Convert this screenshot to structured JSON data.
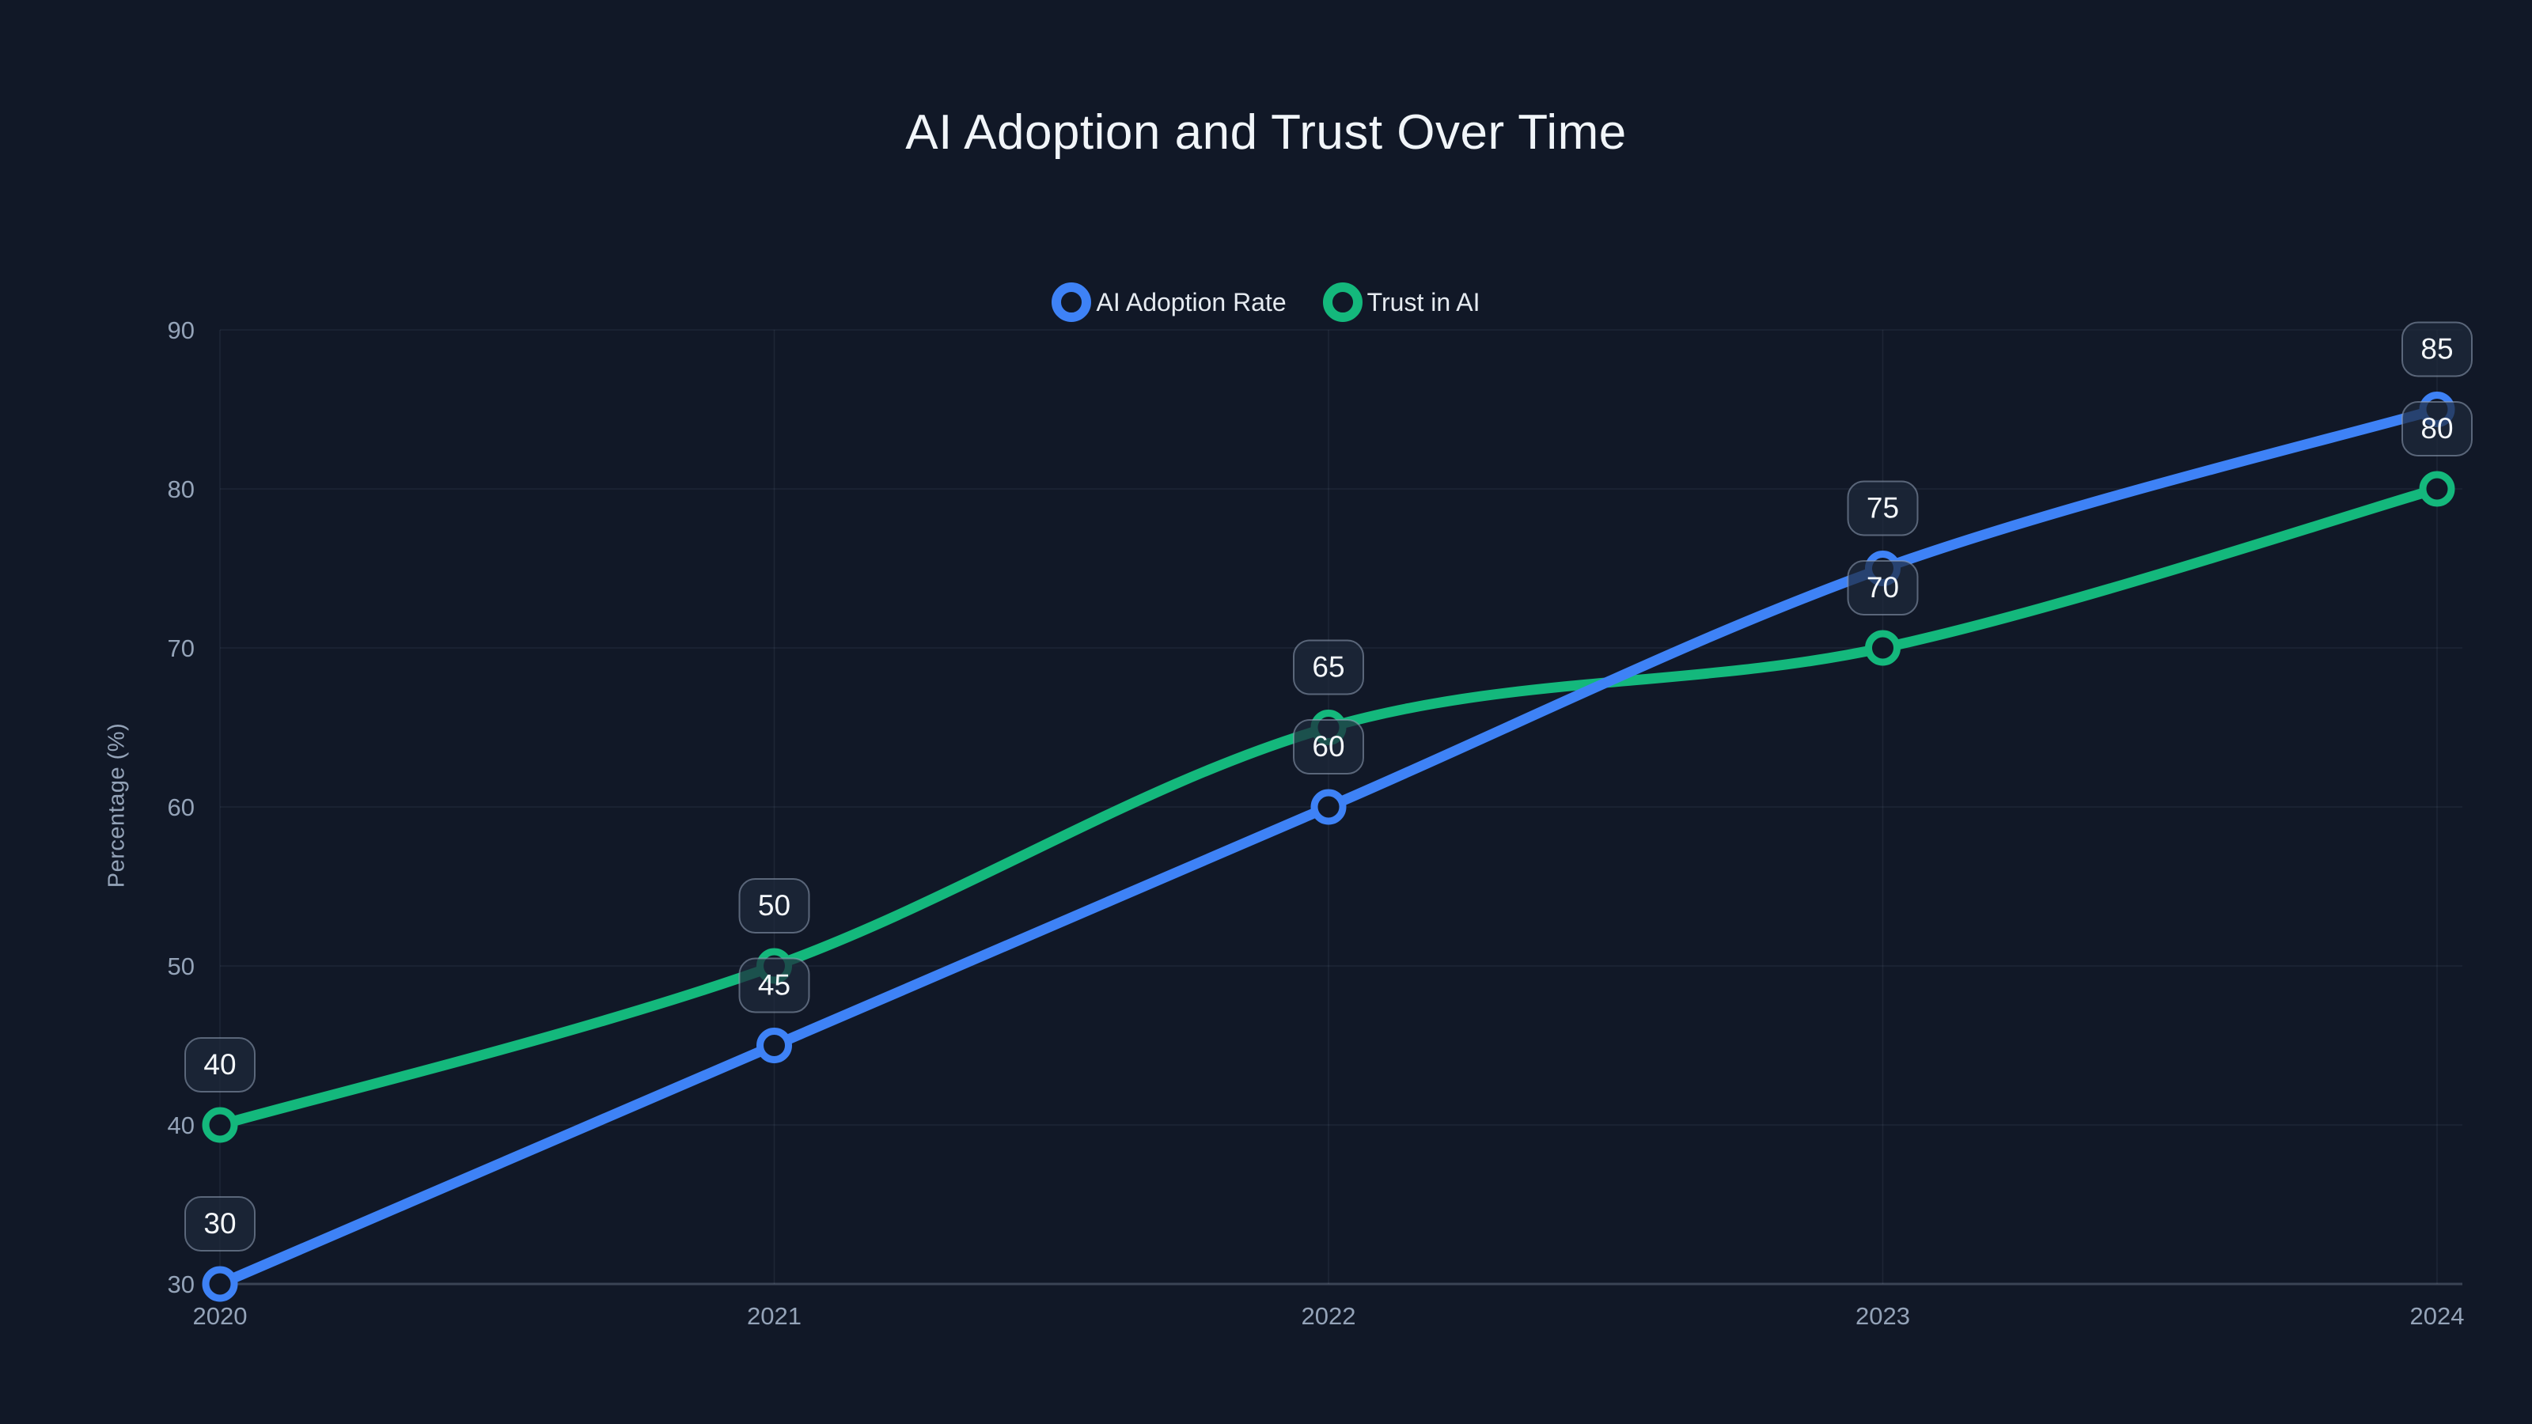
{
  "page": {
    "background": "#111827"
  },
  "legend": {
    "items": [
      {
        "label": "AI Adoption Rate",
        "color": "#3e82f6"
      },
      {
        "label": "Trust in AI",
        "color": "#14b87c"
      }
    ]
  },
  "chart_data": {
    "type": "line",
    "title": "AI Adoption and Trust Over Time",
    "categories": [
      "2020",
      "2021",
      "2022",
      "2023",
      "2024"
    ],
    "series": [
      {
        "name": "AI Adoption Rate",
        "color": "#3e82f6",
        "values": [
          30,
          45,
          60,
          75,
          85
        ]
      },
      {
        "name": "Trust in AI",
        "color": "#14b87c",
        "values": [
          40,
          50,
          65,
          70,
          80
        ]
      }
    ],
    "xlabel": "",
    "ylabel": "Percentage (%)",
    "ylim": [
      30,
      90
    ],
    "y_ticks": [
      30,
      40,
      50,
      60,
      70,
      80,
      90
    ],
    "grid": true,
    "smooth": true,
    "point_labels_visible": true,
    "legend_position": "top",
    "colors": {
      "background": "#111827",
      "grid": "rgba(148,163,184,0.10)",
      "axis_line": "rgba(148,163,184,0.32)",
      "tick_label": "#94a3b8",
      "title": "#f1f5f9",
      "legend_text": "#e5eaf0",
      "data_label_text": "#f4f7fa",
      "data_label_bg": "rgba(30,41,59,0.72)",
      "data_label_border": "rgba(148,163,184,0.55)"
    }
  }
}
